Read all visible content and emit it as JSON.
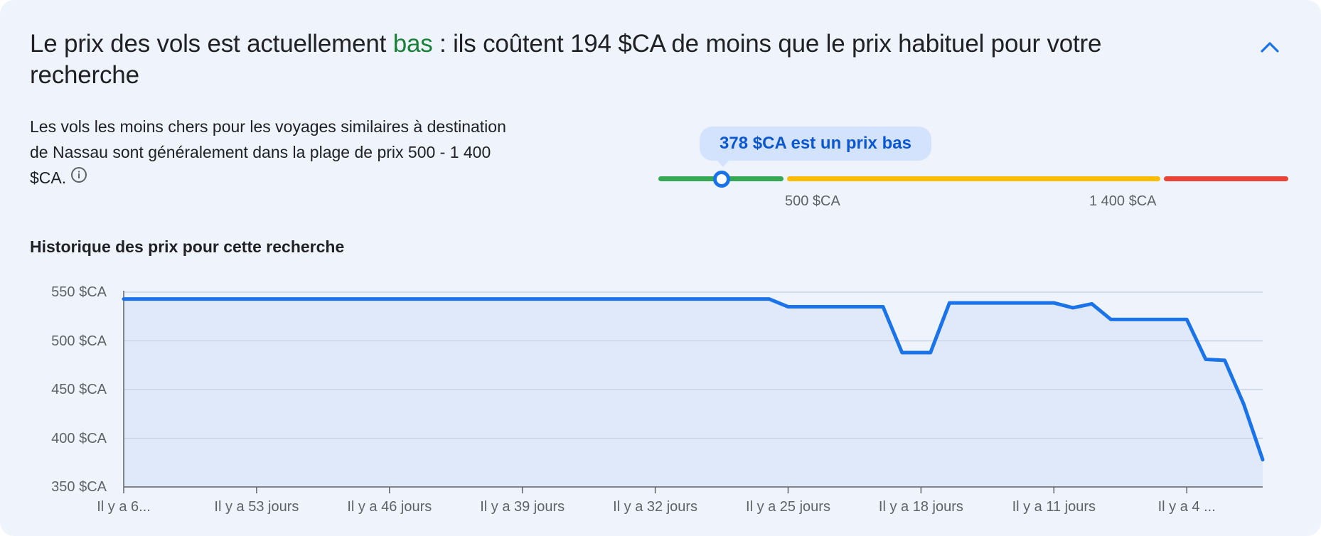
{
  "header": {
    "headline_part1": "Le prix des vols est actuellement ",
    "headline_status": "bas",
    "headline_part2": " : ils coûtent 194 $CA de moins que le prix habituel pour votre recherche",
    "collapse_icon": "chevron-up-icon"
  },
  "summary": {
    "description": "Les vols les moins chers pour les voyages similaires à destination de Nassau sont généralement dans la plage de prix 500 - 1 400 $CA.",
    "info_icon": "info-icon"
  },
  "price_indicator": {
    "tooltip": "378 $CA est un prix bas",
    "low_threshold_label": "500 $CA",
    "high_threshold_label": "1 400 $CA",
    "current_price": 378,
    "colors": {
      "low": "#34a853",
      "typical": "#fbbc04",
      "high": "#ea4335",
      "marker": "#1a73e8"
    }
  },
  "history": {
    "title": "Historique des prix pour cette recherche"
  },
  "chart_data": {
    "type": "area",
    "title": "Historique des prix pour cette recherche",
    "xlabel": "",
    "ylabel": "",
    "ylim": [
      350,
      550
    ],
    "yticks": [
      {
        "value": 550,
        "label": "550 $CA"
      },
      {
        "value": 500,
        "label": "500 $CA"
      },
      {
        "value": 450,
        "label": "450 $CA"
      },
      {
        "value": 400,
        "label": "400 $CA"
      },
      {
        "value": 350,
        "label": "350 $CA"
      }
    ],
    "x_range_days_ago": [
      60,
      0
    ],
    "xticks": [
      {
        "days_ago": 60,
        "label": "Il y a 6..."
      },
      {
        "days_ago": 53,
        "label": "Il y a 53 jours"
      },
      {
        "days_ago": 46,
        "label": "Il y a 46 jours"
      },
      {
        "days_ago": 39,
        "label": "Il y a 39 jours"
      },
      {
        "days_ago": 32,
        "label": "Il y a 32 jours"
      },
      {
        "days_ago": 25,
        "label": "Il y a 25 jours"
      },
      {
        "days_ago": 18,
        "label": "Il y a 18 jours"
      },
      {
        "days_ago": 11,
        "label": "Il y a 11 jours"
      },
      {
        "days_ago": 4,
        "label": "Il y a 4 ..."
      }
    ],
    "grid": true,
    "color": "#1a73e8",
    "fill": "#e0e9fa",
    "series": [
      {
        "points": [
          {
            "days_ago": 60,
            "price": 543
          },
          {
            "days_ago": 26,
            "price": 543
          },
          {
            "days_ago": 25,
            "price": 535
          },
          {
            "days_ago": 20,
            "price": 535
          },
          {
            "days_ago": 19,
            "price": 488
          },
          {
            "days_ago": 17.5,
            "price": 488
          },
          {
            "days_ago": 16.5,
            "price": 539
          },
          {
            "days_ago": 11,
            "price": 539
          },
          {
            "days_ago": 10,
            "price": 534
          },
          {
            "days_ago": 9,
            "price": 538
          },
          {
            "days_ago": 8,
            "price": 522
          },
          {
            "days_ago": 4,
            "price": 522
          },
          {
            "days_ago": 3,
            "price": 481
          },
          {
            "days_ago": 2,
            "price": 480
          },
          {
            "days_ago": 1,
            "price": 435
          },
          {
            "days_ago": 0,
            "price": 378
          }
        ]
      }
    ]
  }
}
